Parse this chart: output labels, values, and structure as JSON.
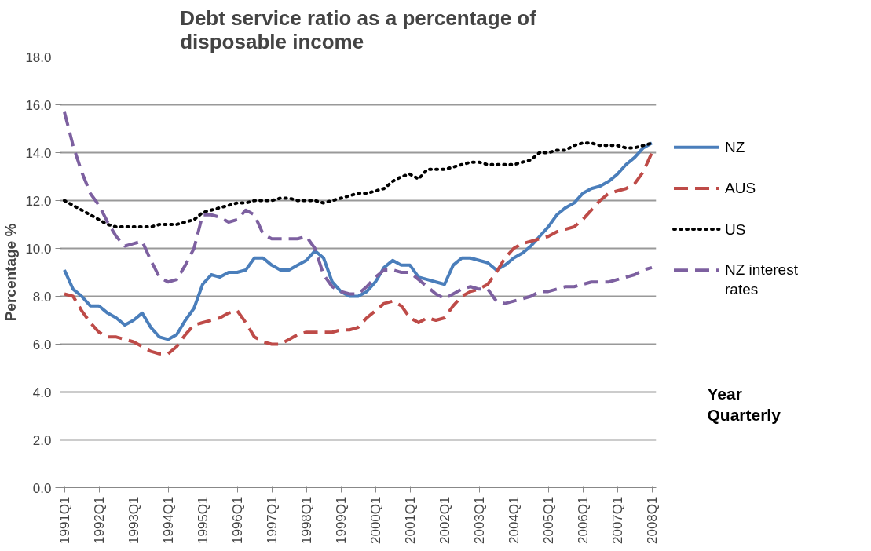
{
  "chart_data": {
    "type": "line",
    "title": "Debt service ratio as a percentage of disposable income",
    "xlabel": "Year Quarterly",
    "ylabel": "Percentage %",
    "categories": [
      "1991Q1",
      null,
      null,
      null,
      "1992Q1",
      null,
      null,
      null,
      "1993Q1",
      null,
      null,
      null,
      "1994Q1",
      null,
      null,
      null,
      "1995Q1",
      null,
      null,
      null,
      "1996Q1",
      null,
      null,
      null,
      "1997Q1",
      null,
      null,
      null,
      "1998Q1",
      null,
      null,
      null,
      "1999Q1",
      null,
      null,
      null,
      "2000Q1",
      null,
      null,
      null,
      "2001Q1",
      null,
      null,
      null,
      "2002Q1",
      null,
      null,
      null,
      "2003Q1",
      null,
      null,
      null,
      "2004Q1",
      null,
      null,
      null,
      "2005Q1",
      null,
      null,
      null,
      "2006Q1",
      null,
      null,
      null,
      "2007Q1",
      null,
      null,
      null,
      "2008Q1"
    ],
    "ylim": [
      0,
      18
    ],
    "yticks": [
      {
        "value": 0,
        "label": "0.0"
      },
      {
        "value": 2,
        "label": "2.0"
      },
      {
        "value": 4,
        "label": "4.0"
      },
      {
        "value": 6,
        "label": "6.0"
      },
      {
        "value": 8,
        "label": "8.0"
      },
      {
        "value": 10,
        "label": "10.0"
      },
      {
        "value": 12,
        "label": "12.0"
      },
      {
        "value": 14,
        "label": "14.0"
      },
      {
        "value": 16,
        "label": "16.0"
      },
      {
        "value": 18,
        "label": "18.0"
      }
    ],
    "grid": "y",
    "legend": "right",
    "series": [
      {
        "name": "NZ",
        "color": "#4a7ebb",
        "line_style": "solid",
        "values": [
          9.1,
          8.3,
          8.0,
          7.6,
          7.6,
          7.3,
          7.1,
          6.8,
          7.0,
          7.3,
          6.7,
          6.3,
          6.2,
          6.4,
          7.0,
          7.5,
          8.5,
          8.9,
          8.8,
          9.0,
          9.0,
          9.1,
          9.6,
          9.6,
          9.3,
          9.1,
          9.1,
          9.3,
          9.5,
          9.9,
          9.6,
          8.6,
          8.2,
          8.0,
          8.0,
          8.2,
          8.6,
          9.2,
          9.5,
          9.3,
          9.3,
          8.8,
          8.7,
          8.6,
          8.5,
          9.3,
          9.6,
          9.6,
          9.5,
          9.4,
          9.1,
          9.3,
          9.6,
          9.8,
          10.1,
          10.5,
          10.9,
          11.4,
          11.7,
          11.9,
          12.3,
          12.5,
          12.6,
          12.8,
          13.1,
          13.5,
          13.8,
          14.2,
          14.4
        ]
      },
      {
        "name": "AUS",
        "color": "#be4b48",
        "line_style": "dashed",
        "values": [
          8.1,
          8.0,
          7.4,
          6.9,
          6.5,
          6.3,
          6.3,
          6.2,
          6.1,
          5.9,
          5.7,
          5.6,
          5.6,
          5.9,
          6.4,
          6.8,
          6.9,
          7.0,
          7.1,
          7.3,
          7.4,
          6.9,
          6.3,
          6.1,
          6.0,
          6.0,
          6.2,
          6.4,
          6.5,
          6.5,
          6.5,
          6.5,
          6.6,
          6.6,
          6.7,
          7.1,
          7.4,
          7.7,
          7.8,
          7.6,
          7.1,
          6.9,
          7.1,
          7.0,
          7.1,
          7.6,
          8.0,
          8.2,
          8.3,
          8.5,
          9.0,
          9.6,
          10.0,
          10.2,
          10.3,
          10.4,
          10.5,
          10.7,
          10.8,
          10.9,
          11.2,
          11.6,
          12.0,
          12.3,
          12.4,
          12.5,
          12.7,
          13.2,
          14.0
        ]
      },
      {
        "name": "US",
        "color": "#000000",
        "line_style": "dotted",
        "values": [
          12.0,
          11.8,
          11.6,
          11.4,
          11.2,
          11.0,
          10.9,
          10.9,
          10.9,
          10.9,
          10.9,
          11.0,
          11.0,
          11.0,
          11.1,
          11.2,
          11.5,
          11.6,
          11.7,
          11.8,
          11.9,
          11.9,
          12.0,
          12.0,
          12.0,
          12.1,
          12.1,
          12.0,
          12.0,
          12.0,
          11.9,
          12.0,
          12.1,
          12.2,
          12.3,
          12.3,
          12.4,
          12.5,
          12.8,
          13.0,
          13.1,
          12.9,
          13.3,
          13.3,
          13.3,
          13.4,
          13.5,
          13.6,
          13.6,
          13.5,
          13.5,
          13.5,
          13.5,
          13.6,
          13.7,
          14.0,
          14.0,
          14.1,
          14.1,
          14.3,
          14.4,
          14.4,
          14.3,
          14.3,
          14.3,
          14.2,
          14.2,
          14.3,
          14.4
        ]
      },
      {
        "name": "NZ interest rates",
        "color": "#7d60a0",
        "line_style": "dashed",
        "values": [
          15.7,
          14.3,
          13.2,
          12.3,
          11.8,
          11.1,
          10.5,
          10.1,
          10.2,
          10.3,
          9.5,
          8.8,
          8.6,
          8.7,
          9.3,
          10.0,
          11.4,
          11.4,
          11.3,
          11.1,
          11.2,
          11.6,
          11.4,
          10.6,
          10.4,
          10.4,
          10.4,
          10.4,
          10.5,
          10.0,
          8.9,
          8.4,
          8.2,
          8.1,
          8.1,
          8.4,
          8.8,
          9.1,
          9.1,
          9.0,
          9.0,
          8.7,
          8.4,
          8.1,
          7.9,
          8.1,
          8.3,
          8.4,
          8.3,
          8.3,
          7.8,
          7.7,
          7.8,
          7.9,
          8.0,
          8.2,
          8.2,
          8.3,
          8.4,
          8.4,
          8.5,
          8.6,
          8.6,
          8.6,
          8.7,
          8.8,
          8.9,
          9.1,
          9.2
        ]
      }
    ]
  }
}
